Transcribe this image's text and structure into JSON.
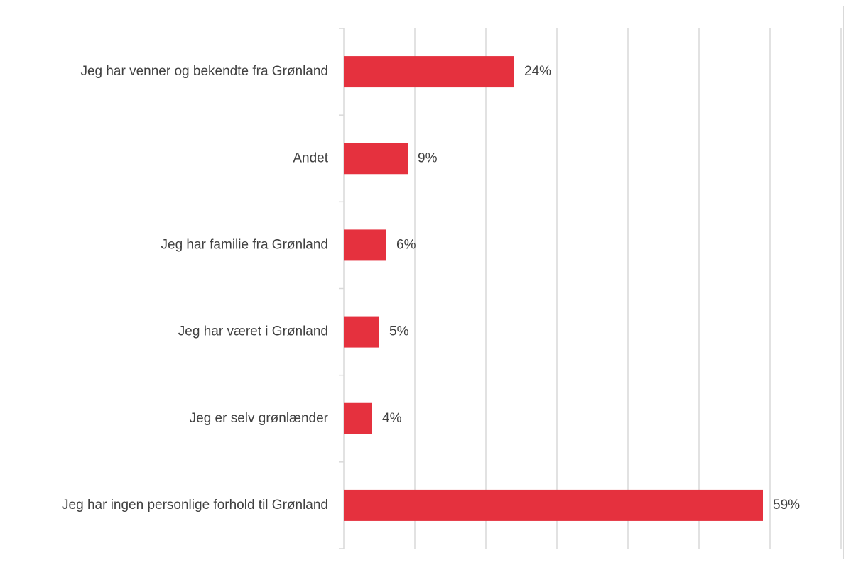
{
  "chart_data": {
    "type": "bar",
    "orientation": "horizontal",
    "title": "",
    "xlabel": "",
    "ylabel": "",
    "categories": [
      "Jeg har venner og bekendte fra Grønland",
      "Andet",
      "Jeg har familie fra Grønland",
      "Jeg har været i Grønland",
      "Jeg er selv grønlænder",
      "Jeg har ingen personlige forhold til Grønland"
    ],
    "values": [
      24,
      9,
      6,
      5,
      4,
      59
    ],
    "value_labels": [
      "24%",
      "9%",
      "6%",
      "5%",
      "4%",
      "59%"
    ],
    "unit": "%",
    "xlim": [
      0,
      70
    ],
    "grid": true,
    "legend": "none",
    "bar_color": "#e5313e"
  }
}
